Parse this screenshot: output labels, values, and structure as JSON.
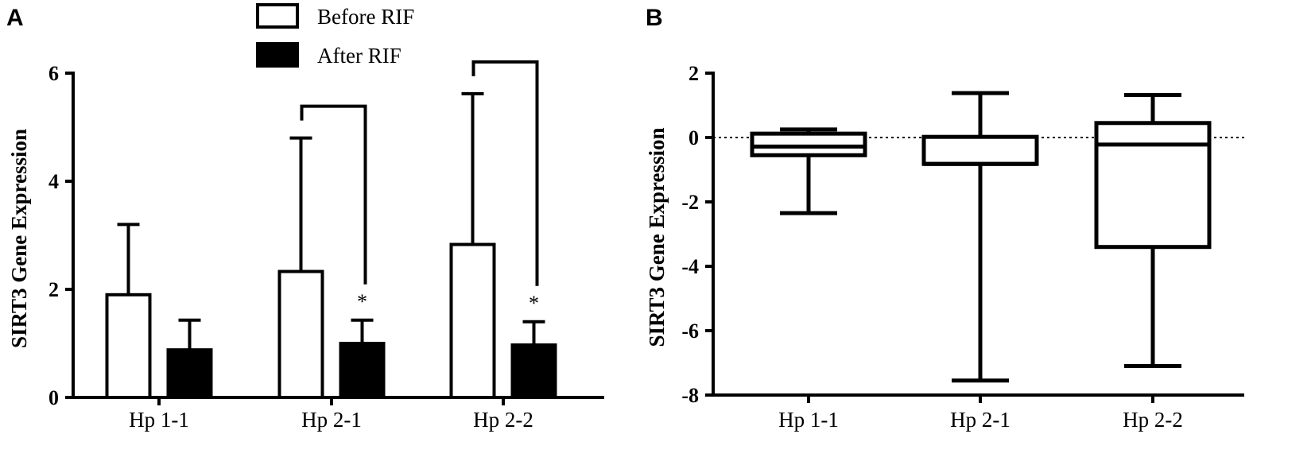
{
  "panels": {
    "a_label": "A",
    "b_label": "B"
  },
  "colors": {
    "before_fill": "#ffffff",
    "after_fill": "#000000",
    "stroke": "#000000"
  },
  "chart_data": [
    {
      "type": "bar",
      "panel": "A",
      "ylabel": "SIRT3 Gene Expression",
      "xlabel": "",
      "ylim": [
        0,
        6
      ],
      "yticks": [
        0,
        2,
        4,
        6
      ],
      "categories": [
        "Hp 1-1",
        "Hp 2-1",
        "Hp 2-2"
      ],
      "series": [
        {
          "name": "Before RIF",
          "values": [
            1.9,
            2.33,
            2.83
          ],
          "error_upper": [
            3.2,
            4.8,
            5.62
          ]
        },
        {
          "name": "After RIF",
          "values": [
            0.88,
            1.0,
            0.97
          ],
          "error_upper": [
            1.43,
            1.43,
            1.4
          ]
        }
      ],
      "legend": "top",
      "significance": [
        {
          "category": "Hp 2-1",
          "marker": "*"
        },
        {
          "category": "Hp 2-2",
          "marker": "*"
        }
      ]
    },
    {
      "type": "box",
      "panel": "B",
      "ylabel": "SIRT3 Gene Expression",
      "xlabel": "",
      "ylim": [
        -8,
        2
      ],
      "yticks": [
        -8,
        -6,
        -4,
        -2,
        0,
        2
      ],
      "reference_line": 0,
      "categories": [
        "Hp 1-1",
        "Hp 2-1",
        "Hp 2-2"
      ],
      "boxes": [
        {
          "min": -2.35,
          "q1": -0.55,
          "median": -0.28,
          "q3": 0.12,
          "max": 0.25
        },
        {
          "min": -7.55,
          "q1": -0.82,
          "median": -0.82,
          "q3": 0.02,
          "max": 1.38
        },
        {
          "min": -7.1,
          "q1": -3.4,
          "median": -0.22,
          "q3": 0.45,
          "max": 1.32
        }
      ]
    }
  ]
}
